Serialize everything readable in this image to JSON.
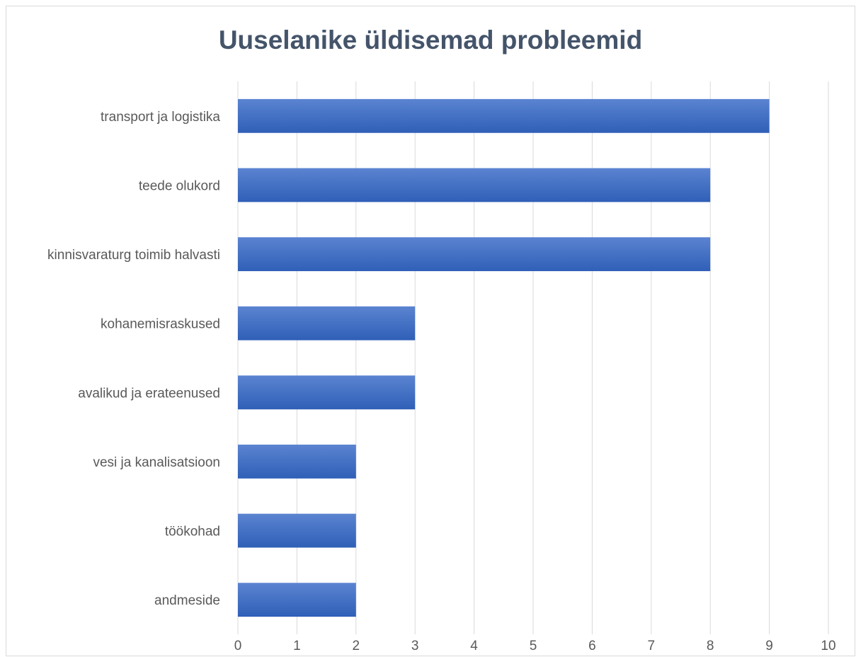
{
  "chart_data": {
    "type": "bar",
    "orientation": "horizontal",
    "title": "Uuselanike üldisemad probleemid",
    "xlabel": "",
    "ylabel": "",
    "categories": [
      "transport ja logistika",
      "teede olukord",
      "kinnisvaraturg toimib halvasti",
      "kohanemisraskused",
      "avalikud ja erateenused",
      "vesi ja kanalisatsioon",
      "töökohad",
      "andmeside"
    ],
    "values": [
      9,
      8,
      8,
      3,
      3,
      2,
      2,
      2
    ],
    "xlim": [
      0,
      10
    ],
    "xticks": [
      "0",
      "1",
      "2",
      "3",
      "4",
      "5",
      "6",
      "7",
      "8",
      "9",
      "10"
    ],
    "grid": "vertical",
    "legend": "none",
    "bar_color_top": "#5b84d1",
    "bar_color_bottom": "#2f5fb7"
  }
}
